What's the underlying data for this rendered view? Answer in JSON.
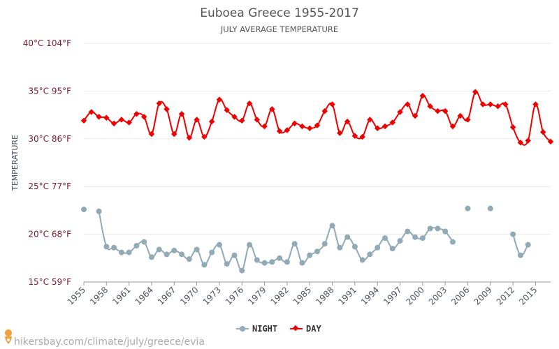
{
  "title": "Euboea Greece 1955-2017",
  "subtitle": "JULY AVERAGE TEMPERATURE",
  "source": "hikersbay.com/climate/july/greece/evia",
  "colors": {
    "day": "#ee0000",
    "night": "#90abb5",
    "grid": "#e8e8e8",
    "ytick": "#7a1a2c"
  },
  "chart_data": {
    "type": "line",
    "title": "Euboea Greece 1955-2017",
    "subtitle": "JULY AVERAGE TEMPERATURE",
    "ylabel": "TEMPERATURE",
    "xlabel": "",
    "ylim": [
      15,
      40
    ],
    "xlim": [
      1955,
      2017
    ],
    "yticks": [
      {
        "value": 40,
        "label": "40°C 104°F"
      },
      {
        "value": 35,
        "label": "35°C 95°F"
      },
      {
        "value": 30,
        "label": "30°C 86°F"
      },
      {
        "value": 25,
        "label": "25°C 77°F"
      },
      {
        "value": 20,
        "label": "20°C 68°F"
      },
      {
        "value": 15,
        "label": "15°C 59°F"
      }
    ],
    "xticks": [
      "1955",
      "1958",
      "1961",
      "1964",
      "1967",
      "1970",
      "1973",
      "1976",
      "1979",
      "1982",
      "1985",
      "1988",
      "1991",
      "1994",
      "1997",
      "2000",
      "2003",
      "2006",
      "2009",
      "2012",
      "2015"
    ],
    "legend_position": "bottom",
    "grid": true,
    "x": [
      1955,
      1956,
      1957,
      1958,
      1959,
      1960,
      1961,
      1962,
      1963,
      1964,
      1965,
      1966,
      1967,
      1968,
      1969,
      1970,
      1971,
      1972,
      1973,
      1974,
      1975,
      1976,
      1977,
      1978,
      1979,
      1980,
      1981,
      1982,
      1983,
      1984,
      1985,
      1986,
      1987,
      1988,
      1989,
      1990,
      1991,
      1992,
      1993,
      1994,
      1995,
      1996,
      1997,
      1998,
      1999,
      2000,
      2001,
      2002,
      2003,
      2004,
      2005,
      2006,
      2007,
      2008,
      2009,
      2010,
      2011,
      2012,
      2013,
      2014,
      2015,
      2016,
      2017
    ],
    "series": [
      {
        "name": "NIGHT",
        "color": "#90abb5",
        "values": [
          22.6,
          null,
          22.4,
          18.7,
          18.6,
          18.1,
          18.1,
          18.8,
          19.2,
          17.6,
          18.4,
          17.9,
          18.3,
          17.9,
          17.4,
          18.4,
          16.8,
          18.1,
          18.9,
          16.9,
          17.8,
          16.2,
          18.9,
          17.3,
          17.0,
          17.1,
          17.5,
          17.1,
          19.0,
          17.0,
          17.8,
          18.2,
          19.0,
          20.9,
          18.6,
          19.7,
          18.7,
          17.3,
          17.9,
          18.6,
          19.6,
          18.5,
          19.3,
          20.3,
          19.7,
          19.6,
          20.6,
          20.6,
          20.3,
          19.2,
          null,
          22.7,
          null,
          null,
          22.7,
          null,
          null,
          20.0,
          17.8,
          18.9,
          null,
          null,
          null
        ]
      },
      {
        "name": "DAY",
        "color": "#ee0000",
        "values": [
          31.9,
          32.8,
          32.3,
          32.2,
          31.6,
          32.0,
          31.7,
          32.6,
          32.3,
          30.5,
          33.7,
          33.1,
          30.5,
          32.6,
          30.1,
          32.0,
          30.2,
          31.8,
          34.1,
          33.0,
          32.3,
          31.9,
          33.7,
          32.0,
          31.3,
          33.1,
          30.8,
          30.9,
          31.6,
          31.3,
          31.1,
          31.4,
          32.9,
          33.6,
          30.6,
          31.8,
          30.3,
          30.2,
          32.0,
          31.1,
          31.3,
          31.7,
          32.8,
          33.6,
          32.4,
          34.5,
          33.4,
          32.9,
          32.9,
          31.3,
          32.4,
          32.0,
          34.9,
          33.6,
          33.6,
          33.4,
          33.6,
          31.2,
          29.6,
          29.8,
          33.6,
          30.7,
          29.7
        ]
      }
    ]
  }
}
